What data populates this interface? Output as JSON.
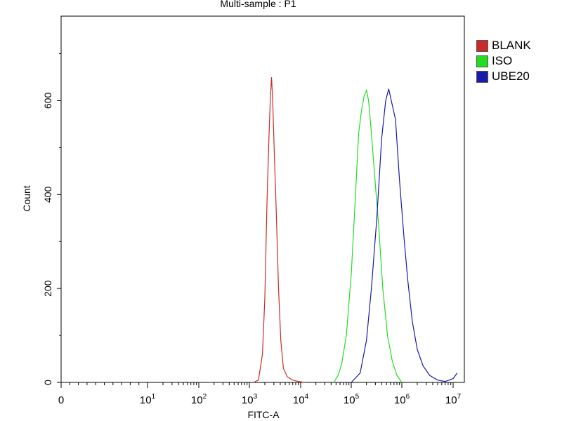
{
  "chart_data": {
    "type": "line",
    "title": "Multi-sample : P1",
    "xlabel": "FITC-A",
    "ylabel": "Count",
    "xscale": "biexponential",
    "x_tick_labels": [
      {
        "value": 0,
        "label": "0"
      },
      {
        "value": 10,
        "base": "10",
        "exp": "1"
      },
      {
        "value": 100,
        "base": "10",
        "exp": "2"
      },
      {
        "value": 1000,
        "base": "10",
        "exp": "3"
      },
      {
        "value": 10000,
        "base": "10",
        "exp": "4"
      },
      {
        "value": 100000,
        "base": "10",
        "exp": "5"
      },
      {
        "value": 1000000,
        "base": "10",
        "exp": "6"
      },
      {
        "value": 10000000,
        "base": "10",
        "exp": "7"
      }
    ],
    "y_ticks": [
      0,
      200,
      400,
      600
    ],
    "ylim": [
      0,
      780
    ],
    "legend_position": "right-top",
    "series": [
      {
        "name": "BLANK",
        "color": "#cc2a2a",
        "points": [
          [
            1200,
            0
          ],
          [
            1500,
            5
          ],
          [
            1800,
            60
          ],
          [
            2000,
            180
          ],
          [
            2200,
            380
          ],
          [
            2400,
            520
          ],
          [
            2550,
            600
          ],
          [
            2700,
            650
          ],
          [
            2850,
            600
          ],
          [
            3000,
            520
          ],
          [
            3300,
            380
          ],
          [
            3700,
            200
          ],
          [
            4100,
            90
          ],
          [
            4600,
            30
          ],
          [
            5500,
            12
          ],
          [
            7000,
            5
          ],
          [
            9000,
            2
          ],
          [
            12000,
            0
          ]
        ]
      },
      {
        "name": "ISO",
        "color": "#22dd22",
        "points": [
          [
            45000,
            0
          ],
          [
            55000,
            15
          ],
          [
            65000,
            40
          ],
          [
            80000,
            100
          ],
          [
            100000,
            230
          ],
          [
            120000,
            390
          ],
          [
            140000,
            530
          ],
          [
            160000,
            580
          ],
          [
            180000,
            610
          ],
          [
            200000,
            622
          ],
          [
            220000,
            600
          ],
          [
            250000,
            530
          ],
          [
            300000,
            420
          ],
          [
            350000,
            330
          ],
          [
            420000,
            200
          ],
          [
            520000,
            100
          ],
          [
            650000,
            45
          ],
          [
            800000,
            15
          ],
          [
            1000000,
            0
          ]
        ]
      },
      {
        "name": "UBE20",
        "color": "#1a1aaa",
        "points": [
          [
            100000,
            0
          ],
          [
            150000,
            20
          ],
          [
            200000,
            90
          ],
          [
            250000,
            200
          ],
          [
            320000,
            350
          ],
          [
            400000,
            520
          ],
          [
            480000,
            600
          ],
          [
            550000,
            625
          ],
          [
            650000,
            590
          ],
          [
            750000,
            560
          ],
          [
            900000,
            430
          ],
          [
            1100000,
            310
          ],
          [
            1300000,
            220
          ],
          [
            1600000,
            130
          ],
          [
            2000000,
            70
          ],
          [
            2600000,
            35
          ],
          [
            3500000,
            15
          ],
          [
            5000000,
            5
          ],
          [
            7000000,
            2
          ],
          [
            10000000,
            8
          ],
          [
            12000000,
            20
          ]
        ]
      }
    ]
  }
}
